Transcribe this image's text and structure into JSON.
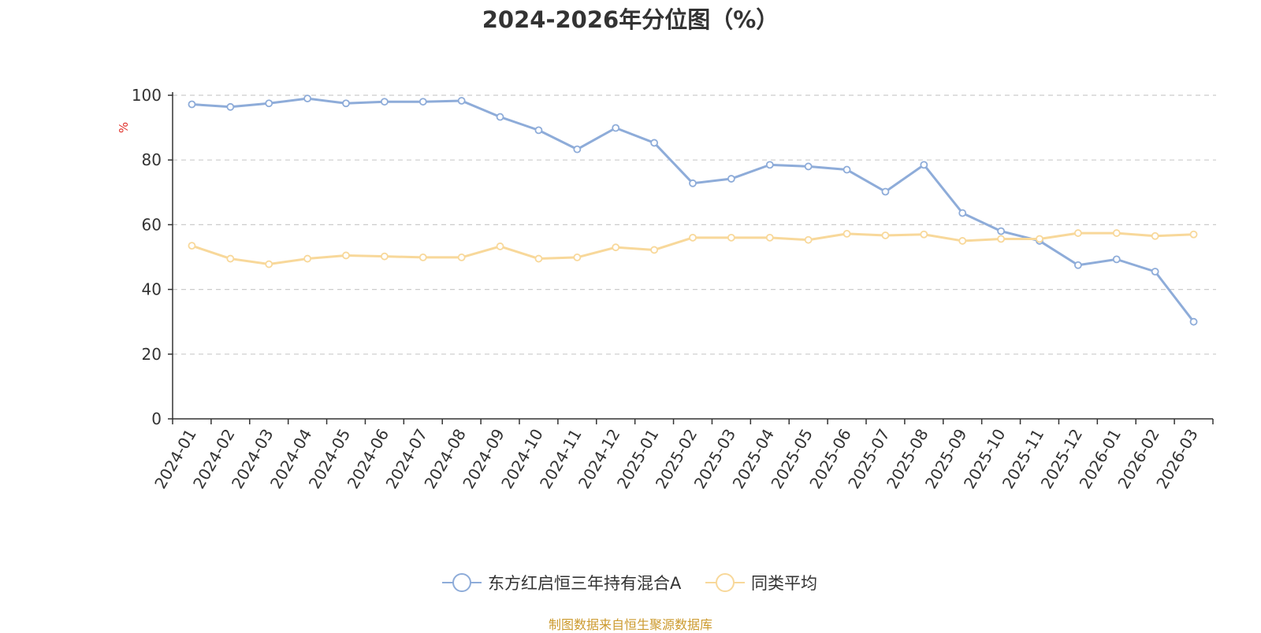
{
  "chart_data": {
    "type": "line",
    "title": "2024-2026年分位图（%）",
    "ylabel": "%",
    "xlabel": "",
    "ylim": [
      0,
      100
    ],
    "yticks": [
      0,
      20,
      40,
      60,
      80,
      100
    ],
    "grid": true,
    "legend_position": "bottom",
    "categories": [
      "2024-01",
      "2024-02",
      "2024-03",
      "2024-04",
      "2024-05",
      "2024-06",
      "2024-07",
      "2024-08",
      "2024-09",
      "2024-10",
      "2024-11",
      "2024-12",
      "2025-01",
      "2025-02",
      "2025-03",
      "2025-04",
      "2025-05",
      "2025-06",
      "2025-07",
      "2025-08",
      "2025-09",
      "2025-10",
      "2025-11",
      "2025-12",
      "2026-01",
      "2026-02",
      "2026-03"
    ],
    "series": [
      {
        "name": "东方红启恒三年持有混合A",
        "color": "#8eacd9",
        "values": [
          97.2,
          96.4,
          97.5,
          99.0,
          97.5,
          98.0,
          98.0,
          98.3,
          93.3,
          89.2,
          83.3,
          89.9,
          85.3,
          72.8,
          74.2,
          78.5,
          78.0,
          77.0,
          70.2,
          78.5,
          63.6,
          58.0,
          55.0,
          47.5,
          49.3,
          45.5,
          30.0
        ]
      },
      {
        "name": "同类平均",
        "color": "#f8d89a",
        "values": [
          53.5,
          49.5,
          47.8,
          49.5,
          50.5,
          50.2,
          49.9,
          49.9,
          53.3,
          49.5,
          49.9,
          53.0,
          52.2,
          56.0,
          56.0,
          56.0,
          55.3,
          57.2,
          56.7,
          57.0,
          55.0,
          55.6,
          55.6,
          57.4,
          57.4,
          56.5,
          57.0
        ]
      }
    ]
  },
  "source_note": "制图数据来自恒生聚源数据库"
}
